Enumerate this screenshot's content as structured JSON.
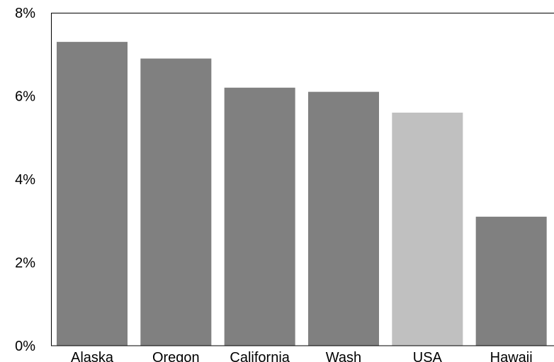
{
  "chart_data": {
    "type": "bar",
    "categories": [
      "Alaska",
      "Oregon",
      "California",
      "Wash",
      "USA",
      "Hawaii"
    ],
    "values": [
      7.3,
      6.9,
      6.2,
      6.1,
      5.6,
      3.1
    ],
    "ylim": [
      0,
      8
    ],
    "yticks": [
      0,
      2,
      4,
      6,
      8
    ],
    "ytick_labels": [
      "0%",
      "2%",
      "4%",
      "6%",
      "8%"
    ],
    "grid": false,
    "colors": {
      "default_bar": "#808080",
      "highlight_bar": "#c0c0c0",
      "axis": "#000000"
    },
    "highlight_category": "USA"
  }
}
